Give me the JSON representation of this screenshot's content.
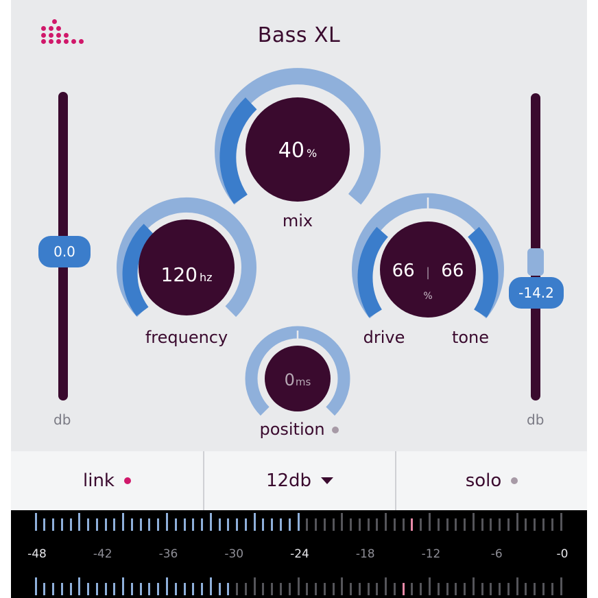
{
  "app": {
    "title": "Bass XL",
    "logo_name": "dots-logo"
  },
  "colors": {
    "background": "#e9eaec",
    "knob_body": "#3a0a2e",
    "arc_light": "#8fb0db",
    "arc_active": "#3b7dcb",
    "accent_pink": "#d0186a",
    "meter_off": "#55555a",
    "meter_peak": "#e88aa8"
  },
  "faders": {
    "input": {
      "value": "0.0",
      "unit": "db"
    },
    "output": {
      "value": "-14.2",
      "unit": "db"
    }
  },
  "knobs": {
    "mix": {
      "value": "40",
      "unit": "%",
      "label": "mix"
    },
    "frequency": {
      "value": "120",
      "unit": "hz",
      "label": "frequency"
    },
    "drive_tone": {
      "drive_value": "66",
      "separator": "|",
      "tone_value": "66",
      "unit": "%",
      "drive_label": "drive",
      "tone_label": "tone"
    },
    "position": {
      "value": "0",
      "unit": "ms",
      "label": "position"
    }
  },
  "tabs": {
    "link": {
      "label": "link",
      "dot_color": "#d0186a"
    },
    "range": {
      "label": "12db",
      "icon": "caret-down-icon"
    },
    "solo": {
      "label": "solo",
      "dot_color": "#a79aa6"
    }
  },
  "meter": {
    "scale_labels": [
      "-48",
      "-42",
      "-36",
      "-30",
      "-24",
      "-18",
      "-12",
      "-6",
      "-0"
    ],
    "highlighted_label": "-24",
    "top_level_db": -24,
    "bottom_level_db": -30,
    "top_peak_db": -13.5,
    "bottom_peak_db": -14.5
  }
}
